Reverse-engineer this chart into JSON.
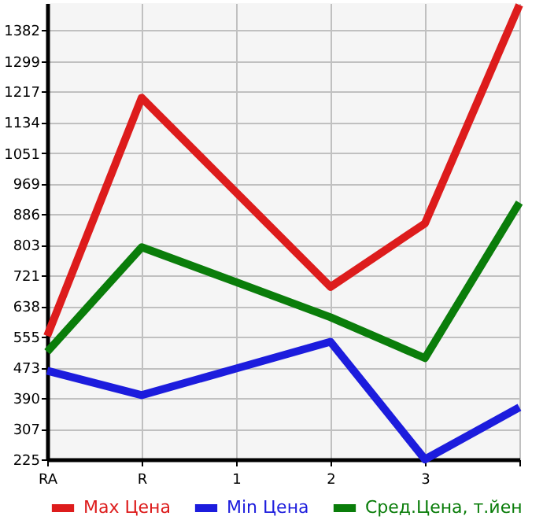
{
  "chart_data": {
    "type": "line",
    "categories": [
      "RA",
      "R",
      "1",
      "2",
      "3",
      null
    ],
    "ylim": [
      225,
      1455
    ],
    "yticks": [
      225,
      307,
      390,
      473,
      555,
      638,
      721,
      803,
      886,
      969,
      1051,
      1134,
      1217,
      1299,
      1382
    ],
    "grid": true,
    "legend": "bottom",
    "series": [
      {
        "name": "Max Цена",
        "color": "#dd1c1c",
        "values": [
          558,
          1200,
          945,
          690,
          861,
          1450
        ]
      },
      {
        "name": "Min Цена",
        "color": "#1c1cdd",
        "values": [
          464,
          398,
          470,
          542,
          225,
          365
        ]
      },
      {
        "name": "Сред.Цена, т.йен",
        "color": "#0a7d0a",
        "values": [
          515,
          797,
          703,
          608,
          498,
          917
        ]
      }
    ]
  }
}
